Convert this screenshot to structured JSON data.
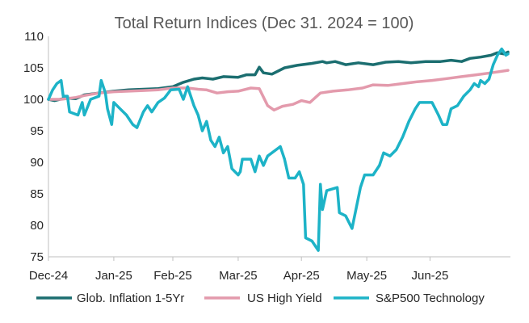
{
  "chart_data": {
    "type": "line",
    "title": "Total Return Indices (Dec 31. 2024 = 100)",
    "xlabel": "",
    "ylabel": "",
    "ylim": [
      75,
      110
    ],
    "yticks": [
      75,
      80,
      85,
      90,
      95,
      100,
      105,
      110
    ],
    "x_tick_labels": [
      "Dec-24",
      "Jan-25",
      "Feb-25",
      "Mar-25",
      "Apr-25",
      "May-25",
      "Jun-25"
    ],
    "x_tick_dates": [
      "2024-12-31",
      "2025-01-31",
      "2025-02-28",
      "2025-03-31",
      "2025-04-30",
      "2025-05-31",
      "2025-06-30"
    ],
    "grid": false,
    "legend_position": "bottom",
    "series": [
      {
        "name": "Glob. Inflation 1-5Yr",
        "color": "#1b6e70",
        "points": [
          [
            "2024-12-31",
            100.0
          ],
          [
            "2025-01-03",
            99.8
          ],
          [
            "2025-01-08",
            100.2
          ],
          [
            "2025-01-13",
            100.1
          ],
          [
            "2025-01-17",
            100.7
          ],
          [
            "2025-01-24",
            101.0
          ],
          [
            "2025-01-31",
            101.3
          ],
          [
            "2025-02-07",
            101.5
          ],
          [
            "2025-02-14",
            101.6
          ],
          [
            "2025-02-21",
            101.7
          ],
          [
            "2025-02-28",
            102.0
          ],
          [
            "2025-03-05",
            102.7
          ],
          [
            "2025-03-10",
            103.2
          ],
          [
            "2025-03-14",
            103.4
          ],
          [
            "2025-03-19",
            103.2
          ],
          [
            "2025-03-24",
            103.6
          ],
          [
            "2025-03-31",
            103.5
          ],
          [
            "2025-04-04",
            103.9
          ],
          [
            "2025-04-08",
            103.9
          ],
          [
            "2025-04-10",
            105.1
          ],
          [
            "2025-04-12",
            104.2
          ],
          [
            "2025-04-16",
            104.0
          ],
          [
            "2025-04-22",
            105.0
          ],
          [
            "2025-04-28",
            105.4
          ],
          [
            "2025-05-05",
            105.7
          ],
          [
            "2025-05-10",
            106.0
          ],
          [
            "2025-05-12",
            105.8
          ],
          [
            "2025-05-16",
            106.0
          ],
          [
            "2025-05-21",
            105.5
          ],
          [
            "2025-05-27",
            105.8
          ],
          [
            "2025-06-03",
            105.5
          ],
          [
            "2025-06-09",
            105.9
          ],
          [
            "2025-06-15",
            106.0
          ],
          [
            "2025-06-21",
            105.8
          ],
          [
            "2025-06-28",
            106.0
          ],
          [
            "2025-07-05",
            106.0
          ],
          [
            "2025-07-10",
            106.2
          ],
          [
            "2025-07-15",
            106.0
          ],
          [
            "2025-07-19",
            106.5
          ],
          [
            "2025-07-24",
            106.7
          ],
          [
            "2025-07-29",
            107.0
          ],
          [
            "2025-08-01",
            107.4
          ],
          [
            "2025-08-04",
            107.2
          ],
          [
            "2025-08-06",
            107.5
          ]
        ]
      },
      {
        "name": "US High Yield",
        "color": "#e39aac",
        "points": [
          [
            "2024-12-31",
            100.0
          ],
          [
            "2025-01-06",
            100.0
          ],
          [
            "2025-01-13",
            100.3
          ],
          [
            "2025-01-17",
            100.6
          ],
          [
            "2025-01-24",
            101.0
          ],
          [
            "2025-01-31",
            101.2
          ],
          [
            "2025-02-07",
            101.3
          ],
          [
            "2025-02-14",
            101.4
          ],
          [
            "2025-02-21",
            101.5
          ],
          [
            "2025-02-28",
            101.8
          ],
          [
            "2025-03-07",
            101.8
          ],
          [
            "2025-03-12",
            101.6
          ],
          [
            "2025-03-16",
            101.5
          ],
          [
            "2025-03-21",
            101.0
          ],
          [
            "2025-03-26",
            101.2
          ],
          [
            "2025-03-31",
            101.3
          ],
          [
            "2025-04-06",
            101.8
          ],
          [
            "2025-04-10",
            101.7
          ],
          [
            "2025-04-14",
            99.0
          ],
          [
            "2025-04-17",
            98.3
          ],
          [
            "2025-04-21",
            98.9
          ],
          [
            "2025-04-26",
            99.2
          ],
          [
            "2025-04-30",
            99.8
          ],
          [
            "2025-05-04",
            99.5
          ],
          [
            "2025-05-09",
            101.0
          ],
          [
            "2025-05-15",
            101.3
          ],
          [
            "2025-05-22",
            101.5
          ],
          [
            "2025-05-29",
            101.8
          ],
          [
            "2025-06-03",
            102.3
          ],
          [
            "2025-06-10",
            102.2
          ],
          [
            "2025-06-17",
            102.5
          ],
          [
            "2025-06-24",
            102.8
          ],
          [
            "2025-07-01",
            103.0
          ],
          [
            "2025-07-08",
            103.3
          ],
          [
            "2025-07-15",
            103.6
          ],
          [
            "2025-07-22",
            103.9
          ],
          [
            "2025-07-29",
            104.2
          ],
          [
            "2025-08-06",
            104.6
          ]
        ]
      },
      {
        "name": "S&P500 Technology",
        "color": "#1db3c7",
        "points": [
          [
            "2024-12-31",
            100.0
          ],
          [
            "2025-01-02",
            101.5
          ],
          [
            "2025-01-04",
            102.5
          ],
          [
            "2025-01-06",
            103.0
          ],
          [
            "2025-01-07",
            100.5
          ],
          [
            "2025-01-09",
            100.5
          ],
          [
            "2025-01-10",
            98.0
          ],
          [
            "2025-01-14",
            97.5
          ],
          [
            "2025-01-16",
            99.5
          ],
          [
            "2025-01-17",
            97.5
          ],
          [
            "2025-01-20",
            100.0
          ],
          [
            "2025-01-24",
            100.5
          ],
          [
            "2025-01-25",
            103.0
          ],
          [
            "2025-01-27",
            101.0
          ],
          [
            "2025-01-28",
            98.5
          ],
          [
            "2025-01-30",
            96.0
          ],
          [
            "2025-01-31",
            99.5
          ],
          [
            "2025-02-03",
            98.5
          ],
          [
            "2025-02-06",
            97.5
          ],
          [
            "2025-02-09",
            96.0
          ],
          [
            "2025-02-11",
            95.5
          ],
          [
            "2025-02-14",
            98.0
          ],
          [
            "2025-02-16",
            99.0
          ],
          [
            "2025-02-18",
            98.0
          ],
          [
            "2025-02-21",
            99.5
          ],
          [
            "2025-02-24",
            100.2
          ],
          [
            "2025-02-27",
            101.5
          ],
          [
            "2025-03-03",
            101.6
          ],
          [
            "2025-03-05",
            100.0
          ],
          [
            "2025-03-07",
            102.0
          ],
          [
            "2025-03-10",
            99.0
          ],
          [
            "2025-03-12",
            97.5
          ],
          [
            "2025-03-14",
            95.0
          ],
          [
            "2025-03-16",
            96.5
          ],
          [
            "2025-03-18",
            93.5
          ],
          [
            "2025-03-20",
            92.5
          ],
          [
            "2025-03-22",
            94.0
          ],
          [
            "2025-03-24",
            91.5
          ],
          [
            "2025-03-26",
            92.5
          ],
          [
            "2025-03-28",
            89.0
          ],
          [
            "2025-03-31",
            88.0
          ],
          [
            "2025-04-01",
            88.5
          ],
          [
            "2025-04-02",
            90.5
          ],
          [
            "2025-04-06",
            90.5
          ],
          [
            "2025-04-08",
            88.5
          ],
          [
            "2025-04-10",
            91.0
          ],
          [
            "2025-04-12",
            89.5
          ],
          [
            "2025-04-14",
            91.0
          ],
          [
            "2025-04-18",
            92.0
          ],
          [
            "2025-04-20",
            92.5
          ],
          [
            "2025-04-22",
            90.5
          ],
          [
            "2025-04-24",
            87.5
          ],
          [
            "2025-04-27",
            87.5
          ],
          [
            "2025-04-29",
            88.5
          ],
          [
            "2025-05-01",
            86.5
          ],
          [
            "2025-05-02",
            78.0
          ],
          [
            "2025-05-05",
            77.5
          ],
          [
            "2025-05-08",
            76.0
          ],
          [
            "2025-05-09",
            86.5
          ],
          [
            "2025-05-10",
            82.5
          ],
          [
            "2025-05-12",
            85.5
          ],
          [
            "2025-05-17",
            86.0
          ],
          [
            "2025-05-18",
            82.0
          ],
          [
            "2025-05-21",
            81.5
          ],
          [
            "2025-05-24",
            79.5
          ],
          [
            "2025-05-28",
            86.0
          ],
          [
            "2025-05-30",
            88.0
          ],
          [
            "2025-06-03",
            88.0
          ],
          [
            "2025-06-06",
            89.5
          ],
          [
            "2025-06-08",
            91.5
          ],
          [
            "2025-06-11",
            91.0
          ],
          [
            "2025-06-14",
            92.0
          ],
          [
            "2025-06-17",
            94.0
          ],
          [
            "2025-06-20",
            96.5
          ],
          [
            "2025-06-23",
            98.5
          ],
          [
            "2025-06-25",
            99.5
          ],
          [
            "2025-07-01",
            99.5
          ],
          [
            "2025-07-04",
            97.5
          ],
          [
            "2025-07-06",
            96.0
          ],
          [
            "2025-07-08",
            96.0
          ],
          [
            "2025-07-10",
            98.5
          ],
          [
            "2025-07-13",
            99.0
          ],
          [
            "2025-07-16",
            100.5
          ],
          [
            "2025-07-19",
            101.5
          ],
          [
            "2025-07-21",
            102.5
          ],
          [
            "2025-07-23",
            102.0
          ],
          [
            "2025-07-24",
            103.0
          ],
          [
            "2025-07-26",
            102.5
          ],
          [
            "2025-07-28",
            103.2
          ],
          [
            "2025-07-30",
            105.5
          ],
          [
            "2025-08-01",
            107.0
          ],
          [
            "2025-08-03",
            108.0
          ],
          [
            "2025-08-05",
            107.0
          ],
          [
            "2025-08-06",
            107.2
          ]
        ]
      }
    ]
  }
}
